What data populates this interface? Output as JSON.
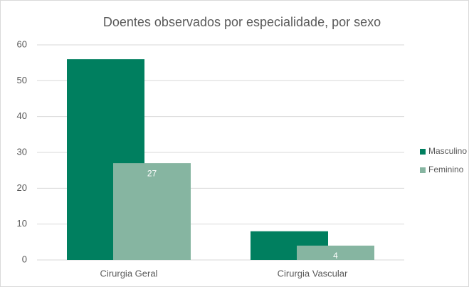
{
  "chart_data": {
    "type": "bar",
    "title": "Doentes observados por especialidade, por sexo",
    "categories": [
      "Cirurgia Geral",
      "Cirurgia Vascular"
    ],
    "series": [
      {
        "name": "Masculino",
        "color": "#007f5f",
        "values": [
          56,
          8
        ],
        "data_labels": false
      },
      {
        "name": "Feminino",
        "color": "#86b5a1",
        "values": [
          27,
          4
        ],
        "data_labels": true
      }
    ],
    "ylim": [
      0,
      60
    ],
    "yticks": [
      0,
      10,
      20,
      30,
      40,
      50,
      60
    ],
    "grid": true,
    "legend": "right"
  }
}
